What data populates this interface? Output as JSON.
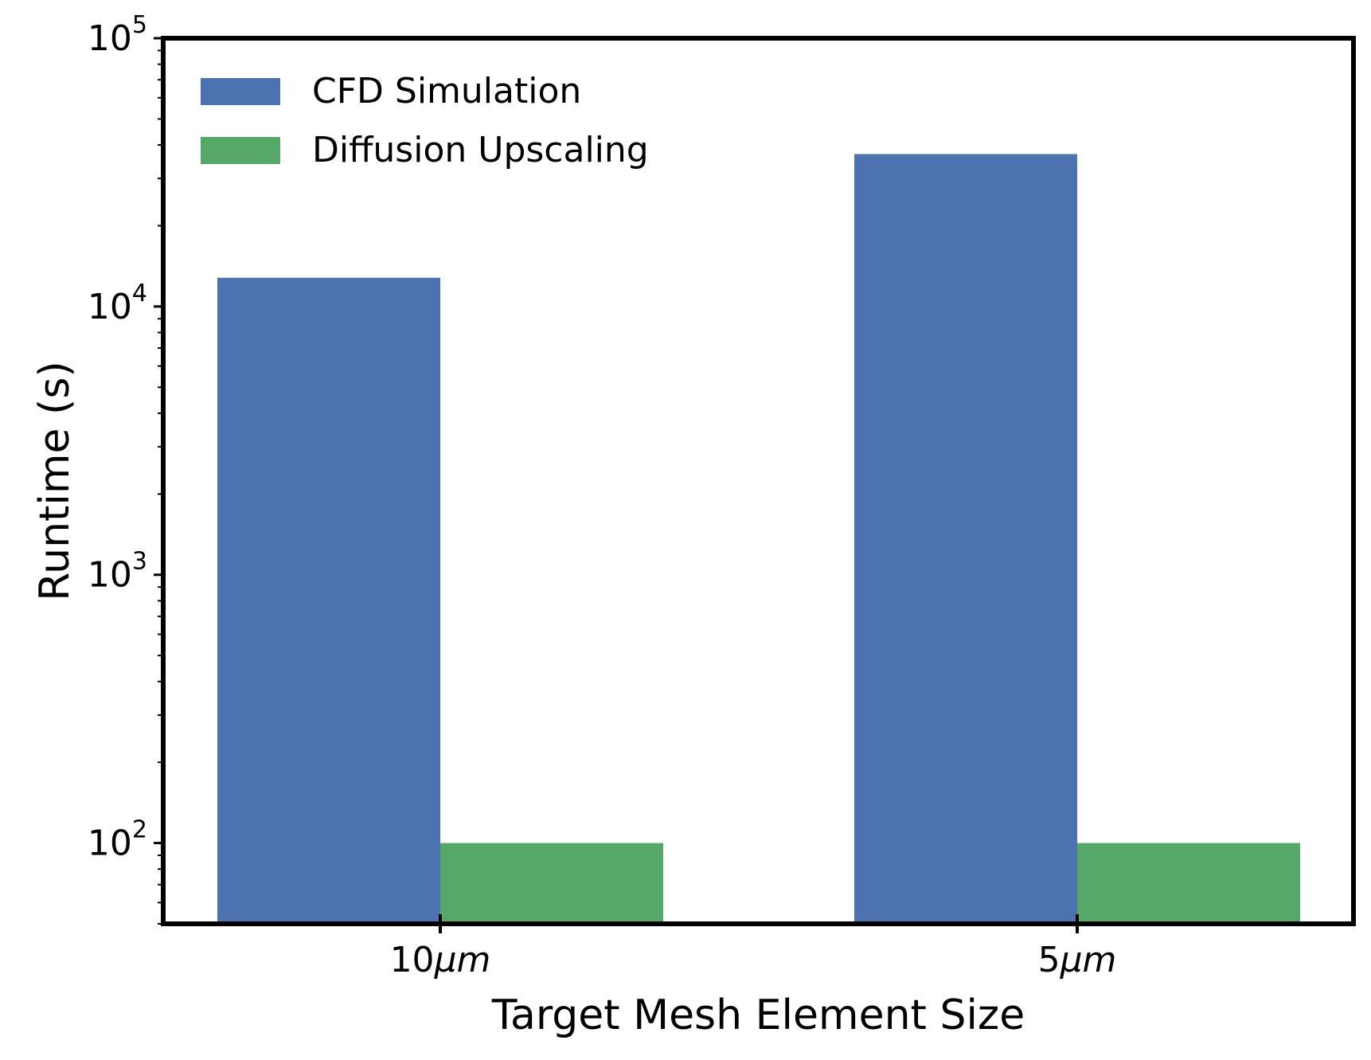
{
  "chart_data": {
    "type": "bar",
    "title": "",
    "xlabel": "Target Mesh Element Size",
    "ylabel": "Runtime (s)",
    "yscale": "log",
    "ylim": [
      50,
      100000
    ],
    "grid": false,
    "legend_position": "top-left",
    "categories": [
      {
        "num": "10",
        "unit": "μm"
      },
      {
        "num": "5",
        "unit": "μm"
      }
    ],
    "series": [
      {
        "name": "CFD Simulation",
        "color": "#4c72b0",
        "values": [
          12800,
          37000
        ]
      },
      {
        "name": "Diffusion Upscaling",
        "color": "#55a868",
        "values": [
          100,
          100
        ]
      }
    ],
    "y_ticks": [
      {
        "value": 100,
        "base": "10",
        "exp": "2"
      },
      {
        "value": 1000,
        "base": "10",
        "exp": "3"
      },
      {
        "value": 10000,
        "base": "10",
        "exp": "4"
      },
      {
        "value": 100000,
        "base": "10",
        "exp": "5"
      }
    ]
  }
}
